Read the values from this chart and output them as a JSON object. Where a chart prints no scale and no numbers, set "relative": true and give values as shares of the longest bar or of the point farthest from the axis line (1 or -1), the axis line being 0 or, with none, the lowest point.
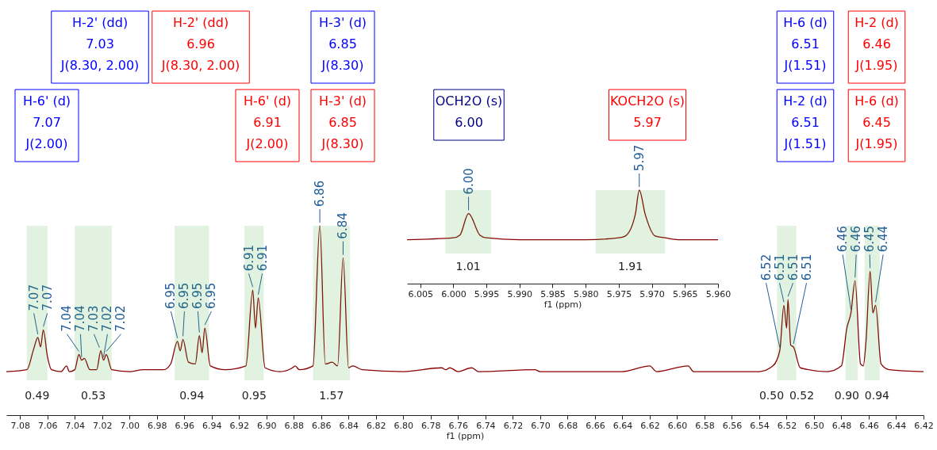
{
  "chart_data": [
    {
      "type": "line",
      "relative": true,
      "xlabel": "f1 (ppm)",
      "xlim": [
        7.09,
        6.42
      ],
      "xticks": [
        7.08,
        7.06,
        7.04,
        7.02,
        {
          "value": 7.0,
          "label": "7.00"
        },
        6.98,
        6.96,
        6.94,
        6.92,
        {
          "value": 6.9,
          "label": "6.90"
        },
        6.88,
        6.86,
        6.84,
        6.82,
        {
          "value": 6.8,
          "label": "6.80"
        },
        6.78,
        6.76,
        6.74,
        6.72,
        {
          "value": 6.7,
          "label": "6.70"
        },
        6.68,
        6.66,
        6.64,
        6.62,
        {
          "value": 6.6,
          "label": "6.60"
        },
        6.58,
        6.56,
        6.54,
        6.52,
        {
          "value": 6.5,
          "label": "6.50"
        },
        6.48,
        6.46,
        6.44,
        6.42
      ],
      "color": "#8b0000",
      "x": [
        7.09,
        7.075,
        7.07,
        7.067,
        7.065,
        7.063,
        7.06,
        7.057,
        7.05,
        7.046,
        7.044,
        7.04,
        7.037,
        7.035,
        7.033,
        7.029,
        7.024,
        7.021,
        7.019,
        7.017,
        7.013,
        7.0,
        6.99,
        6.975,
        6.97,
        6.965,
        6.963,
        6.961,
        6.957,
        6.952,
        6.949,
        6.947,
        6.945,
        6.941,
        6.93,
        6.915,
        6.91,
        6.908,
        6.906,
        6.901,
        6.89,
        6.881,
        6.879,
        6.876,
        6.866,
        6.861,
        6.857,
        6.852,
        6.848,
        6.844,
        6.84,
        6.837,
        6.83,
        6.8,
        6.772,
        6.769,
        6.766,
        6.76,
        6.75,
        6.745,
        6.704,
        6.7,
        6.64,
        6.62,
        6.615,
        6.592,
        6.588,
        6.54,
        6.53,
        6.525,
        6.522,
        6.52,
        6.519,
        6.517,
        6.515,
        6.51,
        6.49,
        6.48,
        6.476,
        6.473,
        6.47,
        6.466,
        6.464,
        6.462,
        6.459,
        6.457,
        6.455,
        6.451,
        6.445,
        6.42
      ],
      "values": [
        0.23,
        0.24,
        0.35,
        0.41,
        0.36,
        0.45,
        0.31,
        0.24,
        0.23,
        0.26,
        0.23,
        0.24,
        0.32,
        0.29,
        0.3,
        0.24,
        0.24,
        0.34,
        0.29,
        0.32,
        0.24,
        0.23,
        0.24,
        0.24,
        0.27,
        0.39,
        0.34,
        0.4,
        0.28,
        0.27,
        0.42,
        0.33,
        0.46,
        0.26,
        0.24,
        0.26,
        0.66,
        0.46,
        0.62,
        0.25,
        0.23,
        0.25,
        0.26,
        0.24,
        0.26,
        1.0,
        0.27,
        0.28,
        0.26,
        0.83,
        0.25,
        0.26,
        0.24,
        0.23,
        0.25,
        0.24,
        0.25,
        0.23,
        0.25,
        0.23,
        0.24,
        0.23,
        0.23,
        0.26,
        0.23,
        0.26,
        0.23,
        0.23,
        0.26,
        0.34,
        0.58,
        0.46,
        0.61,
        0.37,
        0.36,
        0.25,
        0.23,
        0.26,
        0.46,
        0.54,
        0.71,
        0.27,
        0.26,
        0.39,
        0.76,
        0.54,
        0.58,
        0.27,
        0.24,
        0.23
      ],
      "annotations": [
        "H-6' (d)\n7.07\nJ(2.00)",
        "H-2' (dd)\n7.03\nJ(8.30, 2.00)",
        "H-2' (dd)\n6.96\nJ(8.30, 2.00)",
        "H-6' (d)\n6.91\nJ(2.00)",
        "H-3' (d)\n6.85\nJ(8.30)",
        "H-3' (d)\n6.85\nJ(8.30)",
        "H-6 (d)\n6.51\nJ(1.51)",
        "H-2 (d)\n6.46\nJ(1.95)",
        "H-2 (d)\n6.51\nJ(1.51)",
        "H-6 (d)\n6.45\nJ(1.95)",
        {
          "text": "7.07",
          "x": 7.067,
          "y": 0.41
        },
        {
          "text": "7.07",
          "x": 7.063,
          "y": 0.45
        },
        {
          "text": "7.04",
          "x": 7.037,
          "y": 0.32
        },
        {
          "text": "7.04",
          "x": 7.035,
          "y": 0.29
        },
        {
          "text": "7.03",
          "x": 7.022,
          "y": 0.34
        },
        {
          "text": "7.02",
          "x": 7.019,
          "y": 0.29
        },
        {
          "text": "7.02",
          "x": 7.017,
          "y": 0.32
        },
        {
          "text": "6.95",
          "x": 6.965,
          "y": 0.39
        },
        {
          "text": "6.95",
          "x": 6.961,
          "y": 0.4
        },
        {
          "text": "6.95",
          "x": 6.949,
          "y": 0.42
        },
        {
          "text": "6.95",
          "x": 6.945,
          "y": 0.46
        },
        {
          "text": "6.91",
          "x": 6.91,
          "y": 0.66
        },
        {
          "text": "6.91",
          "x": 6.906,
          "y": 0.62
        },
        {
          "text": "6.86",
          "x": 6.861,
          "y": 1.0
        },
        {
          "text": "6.84",
          "x": 6.844,
          "y": 0.83
        },
        {
          "text": "6.52",
          "x": 6.525,
          "y": 0.34
        },
        {
          "text": "6.51",
          "x": 6.522,
          "y": 0.58
        },
        {
          "text": "6.51",
          "x": 6.519,
          "y": 0.61
        },
        {
          "text": "6.51",
          "x": 6.515,
          "y": 0.36
        },
        {
          "text": "6.46",
          "x": 6.473,
          "y": 0.54
        },
        {
          "text": "6.46",
          "x": 6.47,
          "y": 0.71
        },
        {
          "text": "6.45",
          "x": 6.459,
          "y": 0.76
        },
        {
          "text": "6.44",
          "x": 6.455,
          "y": 0.58
        }
      ],
      "bands": [
        {
          "axis": "x",
          "from": 7.075,
          "to": 7.06,
          "label": "0.49",
          "color": "#2ca02c"
        },
        {
          "axis": "x",
          "from": 7.04,
          "to": 7.013,
          "label": "0.53",
          "color": "#2ca02c"
        },
        {
          "axis": "x",
          "from": 6.967,
          "to": 6.942,
          "label": "0.94",
          "color": "#2ca02c"
        },
        {
          "axis": "x",
          "from": 6.916,
          "to": 6.902,
          "label": "0.95",
          "color": "#2ca02c"
        },
        {
          "axis": "x",
          "from": 6.866,
          "to": 6.839,
          "label": "1.57",
          "color": "#2ca02c"
        },
        {
          "axis": "x",
          "from": 6.527,
          "to": 6.52,
          "label": "0.50",
          "color": "#2ca02c"
        },
        {
          "axis": "x",
          "from": 6.52,
          "to": 6.513,
          "label": "0.52",
          "color": "#2ca02c"
        },
        {
          "axis": "x",
          "from": 6.477,
          "to": 6.468,
          "label": "0.90",
          "color": "#2ca02c"
        },
        {
          "axis": "x",
          "from": 6.463,
          "to": 6.452,
          "label": "0.94",
          "color": "#2ca02c"
        }
      ]
    },
    {
      "type": "line",
      "relative": true,
      "xlabel": "f1 (ppm)",
      "xlim": [
        6.007,
        5.96
      ],
      "xticks": [
        6.005,
        {
          "value": 6.0,
          "label": "6.000"
        },
        5.995,
        {
          "value": 5.99,
          "label": "5.990"
        },
        5.985,
        {
          "value": 5.98,
          "label": "5.980"
        },
        5.975,
        {
          "value": 5.97,
          "label": "5.970"
        },
        5.965,
        {
          "value": 5.96,
          "label": "5.960"
        }
      ],
      "color": "#8b0000",
      "x": [
        6.007,
        6.0,
        5.999,
        5.9977,
        5.996,
        5.995,
        5.99,
        5.98,
        5.975,
        5.974,
        5.9725,
        5.9719,
        5.971,
        5.9695,
        5.968,
        5.966,
        5.96
      ],
      "values": [
        0.47,
        0.49,
        0.52,
        0.75,
        0.52,
        0.49,
        0.47,
        0.47,
        0.49,
        0.51,
        0.74,
        1.0,
        0.74,
        0.51,
        0.49,
        0.47,
        0.47
      ],
      "annotations": [
        "OCH2O (s)\n6.00",
        "KOCH2O (s)\n5.97",
        {
          "text": "6.00",
          "x": 5.9977,
          "y": 0.75
        },
        {
          "text": "5.97",
          "x": 5.9719,
          "y": 1.0
        }
      ],
      "bands": [
        {
          "axis": "x",
          "from": 6.0012,
          "to": 5.9943,
          "label": "1.01",
          "color": "#2ca02c"
        },
        {
          "axis": "x",
          "from": 5.9785,
          "to": 5.968,
          "label": "1.91",
          "color": "#2ca02c"
        }
      ]
    }
  ]
}
